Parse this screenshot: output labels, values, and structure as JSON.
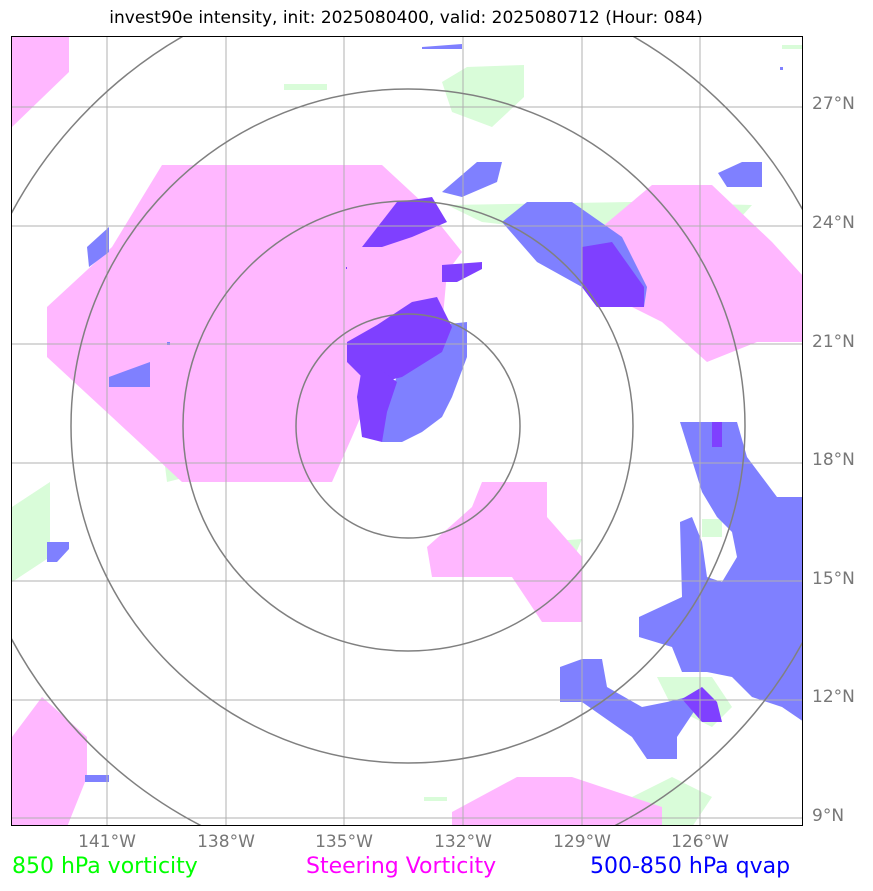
{
  "title": "invest90e intensity, init: 2025080400, valid: 2025080712 (Hour: 084)",
  "latitude_labels": [
    "27°N",
    "24°N",
    "21°N",
    "18°N",
    "15°N",
    "12°N",
    "9°N"
  ],
  "longitude_labels": [
    "141°W",
    "138°W",
    "135°W",
    "132°W",
    "129°W",
    "126°W"
  ],
  "legend": [
    {
      "label": "850 hPa vorticity",
      "color": "#00ff00"
    },
    {
      "label": "Steering Vorticity",
      "color": "#ff00ff"
    },
    {
      "label": "500-850 hPa qvap",
      "color": "#0000ff"
    }
  ],
  "colors": {
    "vorticity_850_fill": "#d9fcd9",
    "steering_fill": "#ffb7ff",
    "qvap_fill": "#7f80ff",
    "overlap_fill": "#7f40ff",
    "grid": "#b0b0b0",
    "range_rings": "#808080",
    "axis_labels": "#777777"
  }
}
